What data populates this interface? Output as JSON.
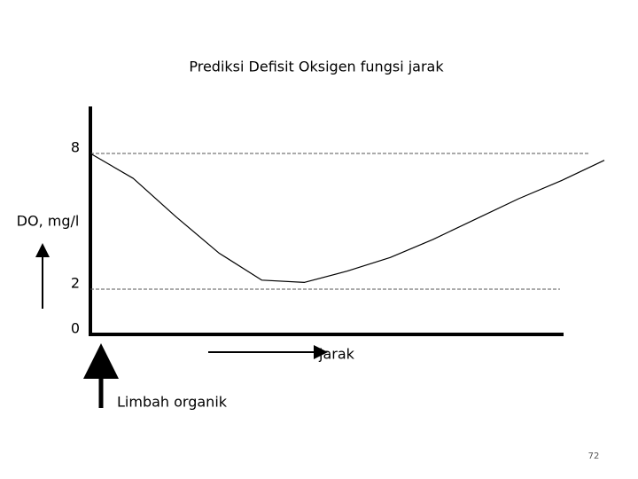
{
  "chart_data": {
    "type": "line",
    "title": "Prediksi Defisit Oksigen fungsi jarak",
    "y_label": "DO, mg/l",
    "x_label": "jarak",
    "annotation": "Limbah organik",
    "page_number": "72",
    "categories": [
      null,
      null,
      null,
      null,
      null,
      null,
      null,
      null,
      null,
      null,
      null,
      null,
      null
    ],
    "values": [
      8.0,
      6.9,
      5.2,
      3.6,
      2.4,
      2.3,
      2.8,
      3.4,
      4.2,
      5.1,
      6.0,
      6.8,
      7.7
    ],
    "color": "#000000",
    "ylim": [
      0,
      10
    ],
    "yticks": [
      0,
      2,
      8
    ],
    "grid": true
  }
}
